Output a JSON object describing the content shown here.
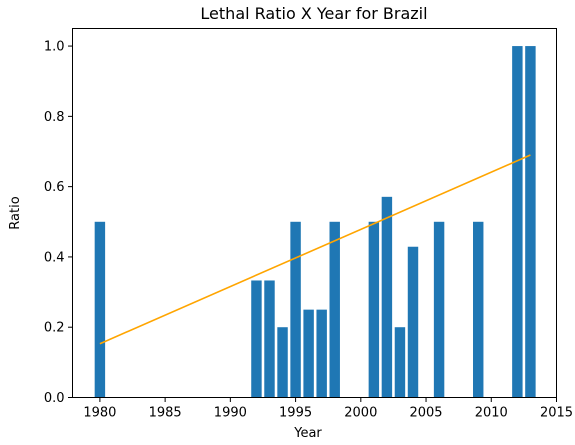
{
  "chart_data": {
    "type": "bar",
    "title": "Lethal Ratio X Year for Brazil",
    "xlabel": "Year",
    "ylabel": "Ratio",
    "x": [
      1980,
      1992,
      1993,
      1994,
      1995,
      1996,
      1997,
      1998,
      2001,
      2002,
      2003,
      2004,
      2006,
      2009,
      2012,
      2013
    ],
    "values": [
      0.5,
      0.333,
      0.333,
      0.2,
      0.5,
      0.25,
      0.25,
      0.5,
      0.5,
      0.571,
      0.2,
      0.429,
      0.5,
      0.5,
      1.0,
      1.0
    ],
    "xlim": [
      1977.9,
      2015.0
    ],
    "ylim": [
      0,
      1.05
    ],
    "xticks": [
      1980,
      1985,
      1990,
      1995,
      2000,
      2005,
      2010,
      2015
    ],
    "yticks": [
      0.0,
      0.2,
      0.4,
      0.6,
      0.8,
      1.0
    ],
    "ytick_labels": [
      "0.0",
      "0.2",
      "0.4",
      "0.6",
      "0.8",
      "1.0"
    ],
    "trendline": {
      "x": [
        1980,
        2013
      ],
      "y": [
        0.153,
        0.69
      ],
      "color": "#ffa500"
    },
    "bar_color": "#1f77b4",
    "grid": false
  }
}
